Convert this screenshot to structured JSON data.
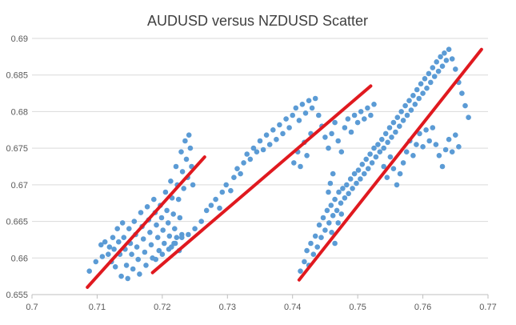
{
  "chart_data": {
    "type": "scatter",
    "title": "AUDUSD versus NZDUSD Scatter",
    "xlabel": "",
    "ylabel": "",
    "xlim": [
      0.7,
      0.77
    ],
    "ylim": [
      0.655,
      0.69
    ],
    "x_ticks": [
      "0.7",
      "0.71",
      "0.72",
      "0.73",
      "0.74",
      "0.75",
      "0.76",
      "0.77"
    ],
    "y_ticks": [
      "0.655",
      "0.66",
      "0.665",
      "0.67",
      "0.675",
      "0.68",
      "0.685",
      "0.69"
    ],
    "grid": "horizontal",
    "legend": "none",
    "colors": {
      "points": "#5b9bd5",
      "trendlines": "#e0191f",
      "grid": "#d9d9d9",
      "axis": "#bfbfbf",
      "text": "#595959",
      "title": "#404040"
    },
    "series": [
      {
        "values": [
          [
            0.7088,
            0.6582
          ],
          [
            0.7098,
            0.6595
          ],
          [
            0.7106,
            0.6618
          ],
          [
            0.7108,
            0.6602
          ],
          [
            0.7112,
            0.6622
          ],
          [
            0.7117,
            0.6605
          ],
          [
            0.7119,
            0.6615
          ],
          [
            0.7122,
            0.6595
          ],
          [
            0.7124,
            0.6628
          ],
          [
            0.7126,
            0.6612
          ],
          [
            0.7128,
            0.6588
          ],
          [
            0.7131,
            0.664
          ],
          [
            0.7133,
            0.6622
          ],
          [
            0.7135,
            0.6605
          ],
          [
            0.7137,
            0.6575
          ],
          [
            0.7139,
            0.6648
          ],
          [
            0.7141,
            0.6628
          ],
          [
            0.7143,
            0.6612
          ],
          [
            0.7145,
            0.659
          ],
          [
            0.7147,
            0.6572
          ],
          [
            0.7149,
            0.664
          ],
          [
            0.7151,
            0.662
          ],
          [
            0.7153,
            0.6605
          ],
          [
            0.7155,
            0.6585
          ],
          [
            0.7157,
            0.665
          ],
          [
            0.7159,
            0.6632
          ],
          [
            0.7161,
            0.6615
          ],
          [
            0.7163,
            0.6598
          ],
          [
            0.7165,
            0.6578
          ],
          [
            0.7167,
            0.6662
          ],
          [
            0.7169,
            0.6643
          ],
          [
            0.7171,
            0.6626
          ],
          [
            0.7173,
            0.6608
          ],
          [
            0.7175,
            0.659
          ],
          [
            0.7177,
            0.667
          ],
          [
            0.7179,
            0.6652
          ],
          [
            0.7181,
            0.6635
          ],
          [
            0.7183,
            0.6618
          ],
          [
            0.7185,
            0.66
          ],
          [
            0.7187,
            0.668
          ],
          [
            0.7189,
            0.6662
          ],
          [
            0.7191,
            0.6645
          ],
          [
            0.7193,
            0.6628
          ],
          [
            0.7195,
            0.661
          ],
          [
            0.7197,
            0.6672
          ],
          [
            0.7199,
            0.6655
          ],
          [
            0.7201,
            0.6638
          ],
          [
            0.7203,
            0.662
          ],
          [
            0.7205,
            0.669
          ],
          [
            0.7207,
            0.6665
          ],
          [
            0.7209,
            0.6648
          ],
          [
            0.7211,
            0.663
          ],
          [
            0.7213,
            0.6705
          ],
          [
            0.7215,
            0.6682
          ],
          [
            0.7217,
            0.666
          ],
          [
            0.7219,
            0.664
          ],
          [
            0.7221,
            0.6725
          ],
          [
            0.7223,
            0.67
          ],
          [
            0.7225,
            0.668
          ],
          [
            0.7227,
            0.6655
          ],
          [
            0.7229,
            0.6745
          ],
          [
            0.7231,
            0.6718
          ],
          [
            0.7233,
            0.6695
          ],
          [
            0.7235,
            0.676
          ],
          [
            0.7237,
            0.6735
          ],
          [
            0.7239,
            0.671
          ],
          [
            0.7241,
            0.6768
          ],
          [
            0.7243,
            0.675
          ],
          [
            0.7245,
            0.6725
          ],
          [
            0.7247,
            0.67
          ],
          [
            0.7214,
            0.6615
          ],
          [
            0.7218,
            0.662
          ],
          [
            0.7222,
            0.6628
          ],
          [
            0.7226,
            0.661
          ],
          [
            0.723,
            0.6632
          ]
        ]
      },
      {
        "values": [
          [
            0.719,
            0.6598
          ],
          [
            0.72,
            0.6605
          ],
          [
            0.721,
            0.6612
          ],
          [
            0.722,
            0.662
          ],
          [
            0.723,
            0.6628
          ],
          [
            0.724,
            0.6632
          ],
          [
            0.725,
            0.664
          ],
          [
            0.726,
            0.665
          ],
          [
            0.7268,
            0.6665
          ],
          [
            0.7275,
            0.6672
          ],
          [
            0.7282,
            0.668
          ],
          [
            0.7288,
            0.6668
          ],
          [
            0.7292,
            0.669
          ],
          [
            0.7298,
            0.67
          ],
          [
            0.7305,
            0.6692
          ],
          [
            0.731,
            0.671
          ],
          [
            0.7315,
            0.6722
          ],
          [
            0.732,
            0.6715
          ],
          [
            0.7325,
            0.673
          ],
          [
            0.733,
            0.6742
          ],
          [
            0.7335,
            0.6735
          ],
          [
            0.734,
            0.675
          ],
          [
            0.7345,
            0.6745
          ],
          [
            0.735,
            0.676
          ],
          [
            0.7355,
            0.6748
          ],
          [
            0.736,
            0.6768
          ],
          [
            0.7365,
            0.6755
          ],
          [
            0.737,
            0.6775
          ],
          [
            0.7375,
            0.6762
          ],
          [
            0.738,
            0.6782
          ],
          [
            0.7385,
            0.677
          ],
          [
            0.739,
            0.679
          ],
          [
            0.7395,
            0.6778
          ],
          [
            0.74,
            0.6795
          ],
          [
            0.7405,
            0.6805
          ],
          [
            0.741,
            0.6788
          ],
          [
            0.7415,
            0.681
          ],
          [
            0.742,
            0.6798
          ],
          [
            0.7425,
            0.6815
          ],
          [
            0.743,
            0.6805
          ],
          [
            0.7435,
            0.6818
          ],
          [
            0.744,
            0.6795
          ],
          [
            0.7445,
            0.678
          ],
          [
            0.745,
            0.6765
          ],
          [
            0.7455,
            0.675
          ],
          [
            0.746,
            0.677
          ],
          [
            0.7465,
            0.6785
          ],
          [
            0.747,
            0.676
          ],
          [
            0.7475,
            0.6745
          ],
          [
            0.748,
            0.6778
          ],
          [
            0.7485,
            0.679
          ],
          [
            0.749,
            0.6772
          ],
          [
            0.7495,
            0.6795
          ],
          [
            0.75,
            0.6785
          ],
          [
            0.7505,
            0.68
          ],
          [
            0.751,
            0.679
          ],
          [
            0.7515,
            0.6805
          ],
          [
            0.752,
            0.6795
          ],
          [
            0.7525,
            0.681
          ],
          [
            0.7402,
            0.673
          ],
          [
            0.7408,
            0.6745
          ],
          [
            0.7412,
            0.6725
          ],
          [
            0.7418,
            0.6758
          ],
          [
            0.7422,
            0.674
          ],
          [
            0.7428,
            0.677
          ]
        ]
      },
      {
        "values": [
          [
            0.7412,
            0.6582
          ],
          [
            0.7418,
            0.6595
          ],
          [
            0.7422,
            0.661
          ],
          [
            0.7425,
            0.659
          ],
          [
            0.7428,
            0.662
          ],
          [
            0.7432,
            0.6605
          ],
          [
            0.7435,
            0.663
          ],
          [
            0.7438,
            0.6615
          ],
          [
            0.7441,
            0.6645
          ],
          [
            0.7444,
            0.6628
          ],
          [
            0.7447,
            0.6655
          ],
          [
            0.745,
            0.6638
          ],
          [
            0.7453,
            0.6665
          ],
          [
            0.7456,
            0.6648
          ],
          [
            0.7459,
            0.6672
          ],
          [
            0.7462,
            0.6658
          ],
          [
            0.7465,
            0.668
          ],
          [
            0.7468,
            0.6665
          ],
          [
            0.7471,
            0.669
          ],
          [
            0.7474,
            0.6675
          ],
          [
            0.7477,
            0.6695
          ],
          [
            0.748,
            0.6682
          ],
          [
            0.7483,
            0.67
          ],
          [
            0.7486,
            0.6688
          ],
          [
            0.7489,
            0.6708
          ],
          [
            0.7492,
            0.6695
          ],
          [
            0.7495,
            0.6715
          ],
          [
            0.7498,
            0.6702
          ],
          [
            0.7501,
            0.672
          ],
          [
            0.7504,
            0.6708
          ],
          [
            0.7507,
            0.6728
          ],
          [
            0.751,
            0.6715
          ],
          [
            0.7513,
            0.6735
          ],
          [
            0.7516,
            0.6722
          ],
          [
            0.7519,
            0.6742
          ],
          [
            0.7522,
            0.673
          ],
          [
            0.7525,
            0.675
          ],
          [
            0.7528,
            0.6738
          ],
          [
            0.7531,
            0.6755
          ],
          [
            0.7534,
            0.6745
          ],
          [
            0.7537,
            0.6762
          ],
          [
            0.754,
            0.675
          ],
          [
            0.7543,
            0.677
          ],
          [
            0.7546,
            0.6758
          ],
          [
            0.7549,
            0.6778
          ],
          [
            0.7552,
            0.6765
          ],
          [
            0.7555,
            0.6785
          ],
          [
            0.7558,
            0.6772
          ],
          [
            0.7561,
            0.6792
          ],
          [
            0.7564,
            0.678
          ],
          [
            0.7567,
            0.68
          ],
          [
            0.757,
            0.6788
          ],
          [
            0.7573,
            0.6808
          ],
          [
            0.7576,
            0.6795
          ],
          [
            0.7579,
            0.6815
          ],
          [
            0.7582,
            0.6802
          ],
          [
            0.7585,
            0.6822
          ],
          [
            0.7588,
            0.681
          ],
          [
            0.7591,
            0.683
          ],
          [
            0.7594,
            0.6818
          ],
          [
            0.7597,
            0.6838
          ],
          [
            0.76,
            0.6825
          ],
          [
            0.7603,
            0.6845
          ],
          [
            0.7606,
            0.6832
          ],
          [
            0.7609,
            0.6852
          ],
          [
            0.7612,
            0.684
          ],
          [
            0.7615,
            0.686
          ],
          [
            0.7618,
            0.6848
          ],
          [
            0.7621,
            0.6868
          ],
          [
            0.7624,
            0.6855
          ],
          [
            0.7627,
            0.6875
          ],
          [
            0.763,
            0.6862
          ],
          [
            0.7633,
            0.688
          ],
          [
            0.7636,
            0.687
          ],
          [
            0.764,
            0.6885
          ],
          [
            0.7645,
            0.6872
          ],
          [
            0.765,
            0.6858
          ],
          [
            0.7655,
            0.684
          ],
          [
            0.766,
            0.6825
          ],
          [
            0.7665,
            0.6808
          ],
          [
            0.767,
            0.6792
          ],
          [
            0.746,
            0.6635
          ],
          [
            0.7465,
            0.662
          ],
          [
            0.747,
            0.6648
          ],
          [
            0.7475,
            0.666
          ],
          [
            0.7455,
            0.669
          ],
          [
            0.7458,
            0.6702
          ],
          [
            0.7462,
            0.6715
          ],
          [
            0.754,
            0.6725
          ],
          [
            0.7545,
            0.671
          ],
          [
            0.755,
            0.6738
          ],
          [
            0.7555,
            0.6722
          ],
          [
            0.756,
            0.67
          ],
          [
            0.7565,
            0.6715
          ],
          [
            0.757,
            0.673
          ],
          [
            0.7575,
            0.6745
          ],
          [
            0.758,
            0.676
          ],
          [
            0.7585,
            0.674
          ],
          [
            0.759,
            0.6755
          ],
          [
            0.7595,
            0.677
          ],
          [
            0.76,
            0.6752
          ],
          [
            0.7605,
            0.6775
          ],
          [
            0.761,
            0.676
          ],
          [
            0.7615,
            0.6778
          ],
          [
            0.762,
            0.6755
          ],
          [
            0.7625,
            0.674
          ],
          [
            0.763,
            0.6725
          ],
          [
            0.7635,
            0.6748
          ],
          [
            0.764,
            0.6762
          ],
          [
            0.7645,
            0.6745
          ],
          [
            0.765,
            0.6768
          ],
          [
            0.7655,
            0.6752
          ]
        ]
      }
    ],
    "trendlines": [
      {
        "from": [
          0.7085,
          0.656
        ],
        "to": [
          0.7265,
          0.6738
        ]
      },
      {
        "from": [
          0.7185,
          0.658
        ],
        "to": [
          0.752,
          0.6835
        ]
      },
      {
        "from": [
          0.741,
          0.657
        ],
        "to": [
          0.769,
          0.6885
        ]
      }
    ]
  }
}
